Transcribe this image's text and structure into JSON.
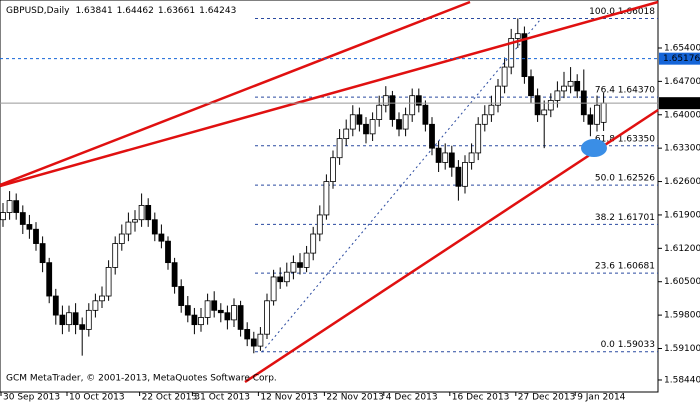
{
  "chart_data": {
    "type": "candlestick",
    "title": "GBPUSD,Daily",
    "ohlc": [
      1.63841,
      1.64462,
      1.63661,
      1.64243
    ],
    "footer": "GCM MetaTrader, © 2001-2013, MetaQuotes Software Corp.",
    "categories": [
      "30 Sep 2013",
      null,
      null,
      null,
      null,
      null,
      null,
      null,
      null,
      null,
      "10 Oct 2013",
      null,
      null,
      null,
      null,
      null,
      null,
      null,
      null,
      null,
      null,
      "22 Oct 2013",
      null,
      null,
      null,
      null,
      null,
      null,
      null,
      "31 Oct 2013",
      null,
      null,
      null,
      null,
      null,
      null,
      null,
      null,
      null,
      "12 Nov 2013",
      null,
      null,
      null,
      null,
      null,
      null,
      null,
      null,
      null,
      "22 Nov 2013",
      null,
      null,
      null,
      null,
      null,
      null,
      null,
      null,
      "4 Dec 2013",
      null,
      null,
      null,
      null,
      null,
      null,
      null,
      null,
      null,
      "16 Dec 2013",
      null,
      null,
      null,
      null,
      null,
      null,
      null,
      null,
      null,
      "27 Dec 2013",
      null,
      null,
      null,
      null,
      null,
      null,
      null,
      null,
      "9 Jan 2014",
      null,
      null,
      null,
      null
    ],
    "open": [
      1.618,
      1.6195,
      1.622,
      1.6195,
      1.617,
      1.616,
      1.613,
      1.609,
      1.602,
      1.598,
      1.596,
      1.5985,
      1.596,
      1.595,
      1.599,
      1.601,
      1.602,
      1.608,
      1.613,
      1.615,
      1.6175,
      1.618,
      1.621,
      1.618,
      1.615,
      1.6135,
      1.609,
      1.604,
      1.6,
      1.598,
      1.596,
      1.5975,
      1.601,
      1.599,
      1.5985,
      1.597,
      1.6,
      1.595,
      1.593,
      1.5915,
      1.594,
      1.601,
      1.606,
      1.605,
      1.607,
      1.609,
      1.608,
      1.611,
      1.615,
      1.619,
      1.626,
      1.631,
      1.635,
      1.637,
      1.64,
      1.638,
      1.636,
      1.639,
      1.642,
      1.644,
      1.639,
      1.637,
      1.64,
      1.644,
      1.642,
      1.638,
      1.633,
      1.63,
      1.632,
      1.629,
      1.625,
      1.63,
      1.632,
      1.638,
      1.64,
      1.642,
      1.646,
      1.65,
      1.656,
      1.657,
      1.648,
      1.644,
      1.64,
      1.641,
      1.643,
      1.645,
      1.646,
      1.647,
      1.645,
      1.64,
      1.638,
      1.63841
    ],
    "high": [
      1.6215,
      1.624,
      1.6235,
      1.621,
      1.619,
      1.6175,
      1.6145,
      1.61,
      1.6035,
      1.6,
      1.6,
      1.6005,
      1.5975,
      1.6005,
      1.6025,
      1.604,
      1.6095,
      1.6145,
      1.617,
      1.6195,
      1.62,
      1.6235,
      1.6225,
      1.6195,
      1.617,
      1.6145,
      1.61,
      1.6055,
      1.602,
      1.5995,
      1.5995,
      1.6025,
      1.603,
      1.6005,
      1.6,
      1.6015,
      1.601,
      1.5965,
      1.5945,
      1.5955,
      1.6025,
      1.6075,
      1.608,
      1.609,
      1.6105,
      1.611,
      1.6125,
      1.6165,
      1.621,
      1.6275,
      1.6325,
      1.637,
      1.639,
      1.642,
      1.6415,
      1.6395,
      1.6405,
      1.644,
      1.646,
      1.645,
      1.6405,
      1.6415,
      1.6455,
      1.6455,
      1.643,
      1.6395,
      1.6345,
      1.634,
      1.6335,
      1.6305,
      1.6315,
      1.634,
      1.6395,
      1.642,
      1.644,
      1.6475,
      1.652,
      1.658,
      1.6602,
      1.6585,
      1.6495,
      1.6455,
      1.643,
      1.6445,
      1.647,
      1.649,
      1.65,
      1.6485,
      1.6495,
      1.6415,
      1.644,
      1.64462
    ],
    "low": [
      1.6165,
      1.618,
      1.618,
      1.615,
      1.614,
      1.6115,
      1.607,
      1.6005,
      1.596,
      1.594,
      1.5945,
      1.594,
      1.5895,
      1.5935,
      1.5975,
      1.5995,
      1.601,
      1.6065,
      1.6115,
      1.6135,
      1.6155,
      1.6165,
      1.6165,
      1.6135,
      1.612,
      1.6075,
      1.6025,
      1.5985,
      1.5965,
      1.594,
      1.5945,
      1.596,
      1.5975,
      1.5965,
      1.595,
      1.5955,
      1.5935,
      1.5915,
      1.59,
      1.5905,
      1.593,
      1.6,
      1.6035,
      1.604,
      1.6055,
      1.6065,
      1.607,
      1.6095,
      1.6135,
      1.618,
      1.6245,
      1.6295,
      1.6335,
      1.6355,
      1.6365,
      1.634,
      1.6345,
      1.6375,
      1.6405,
      1.6375,
      1.6355,
      1.6355,
      1.6385,
      1.6405,
      1.6365,
      1.6315,
      1.628,
      1.6285,
      1.627,
      1.622,
      1.6235,
      1.6285,
      1.6305,
      1.6365,
      1.6385,
      1.6405,
      1.6445,
      1.6485,
      1.654,
      1.6465,
      1.6425,
      1.6385,
      1.633,
      1.6395,
      1.6415,
      1.6435,
      1.6445,
      1.6435,
      1.6385,
      1.6355,
      1.6365,
      1.63661
    ],
    "close": [
      1.6195,
      1.622,
      1.6195,
      1.617,
      1.616,
      1.613,
      1.609,
      1.602,
      1.598,
      1.596,
      1.5985,
      1.596,
      1.595,
      1.599,
      1.601,
      1.602,
      1.608,
      1.613,
      1.615,
      1.6175,
      1.618,
      1.621,
      1.618,
      1.615,
      1.6135,
      1.609,
      1.604,
      1.6,
      1.598,
      1.596,
      1.5975,
      1.601,
      1.599,
      1.5985,
      1.597,
      1.6,
      1.595,
      1.593,
      1.5915,
      1.594,
      1.601,
      1.606,
      1.605,
      1.607,
      1.609,
      1.608,
      1.611,
      1.615,
      1.619,
      1.626,
      1.631,
      1.635,
      1.637,
      1.64,
      1.638,
      1.636,
      1.639,
      1.642,
      1.644,
      1.639,
      1.637,
      1.64,
      1.644,
      1.642,
      1.638,
      1.633,
      1.63,
      1.632,
      1.629,
      1.625,
      1.63,
      1.632,
      1.638,
      1.64,
      1.642,
      1.646,
      1.65,
      1.656,
      1.657,
      1.648,
      1.644,
      1.64,
      1.641,
      1.643,
      1.645,
      1.646,
      1.647,
      1.645,
      1.64,
      1.638,
      1.642,
      1.64243
    ],
    "ylim": [
      1.58188,
      1.66406
    ],
    "yticks": [
      {
        "value": 1.654,
        "label": "1.65400"
      },
      {
        "value": 1.647,
        "label": "1.64700"
      },
      {
        "value": 1.64,
        "label": "1.64000"
      },
      {
        "value": 1.633,
        "label": "1.63300"
      },
      {
        "value": 1.626,
        "label": "1.62600"
      },
      {
        "value": 1.619,
        "label": "1.61900"
      },
      {
        "value": 1.612,
        "label": "1.61200"
      },
      {
        "value": 1.605,
        "label": "1.60500"
      },
      {
        "value": 1.598,
        "label": "1.59800"
      },
      {
        "value": 1.591,
        "label": "1.59100"
      },
      {
        "value": 1.5844,
        "label": "1.58440"
      }
    ],
    "fib_levels": [
      {
        "value": 1.66018,
        "label": "100.0 1.66018"
      },
      {
        "value": 1.6437,
        "label": "76.4 1.64370"
      },
      {
        "value": 1.6335,
        "label": "61.8 1.63350"
      },
      {
        "value": 1.62526,
        "label": "50.0 1.62526"
      },
      {
        "value": 1.61701,
        "label": "38.2 1.61701"
      },
      {
        "value": 1.60681,
        "label": "23.6 1.60681"
      },
      {
        "value": 1.59033,
        "label": "0.0 1.59033"
      }
    ],
    "price_lines": [
      {
        "value": 1.65176,
        "color": "#1565d8"
      },
      {
        "value": 1.64243,
        "color": "#000000"
      }
    ],
    "bull_color": "#ffffff",
    "bear_color": "#000000",
    "fib_color": "#2a4aa0"
  }
}
